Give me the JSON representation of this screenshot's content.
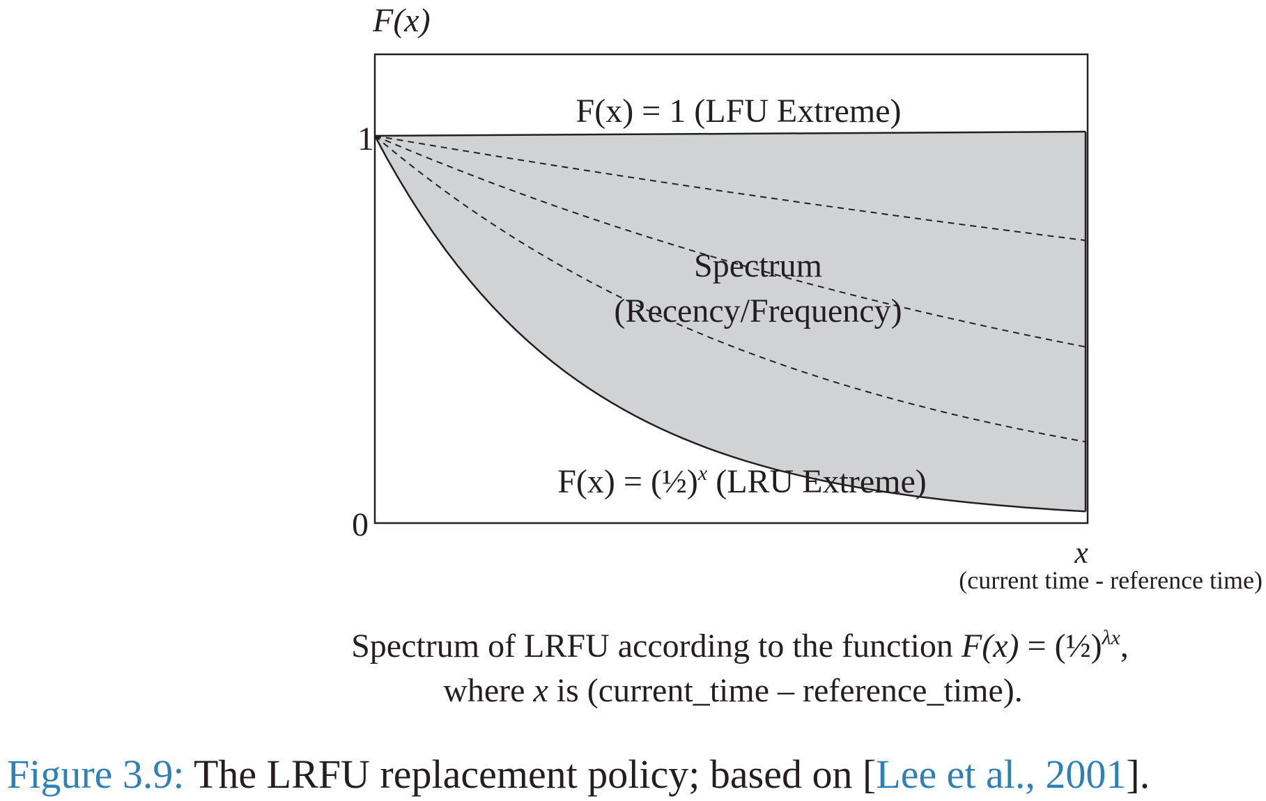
{
  "diagram": {
    "y_axis_label": "F(x)",
    "y_tick_top": "1",
    "y_tick_bottom": "0",
    "x_axis_label": "x",
    "x_axis_sublabel": "(current time - reference time)",
    "top_curve_label": "F(x) = 1 (LFU Extreme)",
    "bottom_curve_label_prefix": "F(x) = (½)",
    "bottom_curve_label_exp": "x",
    "bottom_curve_label_suffix": " (LRU Extreme)",
    "region_label_line1": "Spectrum",
    "region_label_line2": "(Recency/Frequency)",
    "colors": {
      "region_fill": "#d1d2d4",
      "ink": "#231f20",
      "link": "#2f80b7"
    },
    "curves": {
      "lfu_value": 1,
      "lru_decay_base": 0.5,
      "lru_end_value": 0.03,
      "dashed_end_values": [
        0.73,
        0.455,
        0.21
      ]
    }
  },
  "caption": {
    "line1_prefix": "Spectrum of LRFU according to the function ",
    "line1_func": "F(x)",
    "line1_eq": " = (½)",
    "line1_exp": "λx",
    "line1_suffix": ",",
    "line2_prefix": "where ",
    "line2_var": "x",
    "line2_suffix": " is (current_time – reference_time)."
  },
  "figure_caption": {
    "label": "Figure 3.9:",
    "text": " The LRFU replacement policy; based on [",
    "citation": "Lee et al., 2001",
    "end": "]."
  }
}
